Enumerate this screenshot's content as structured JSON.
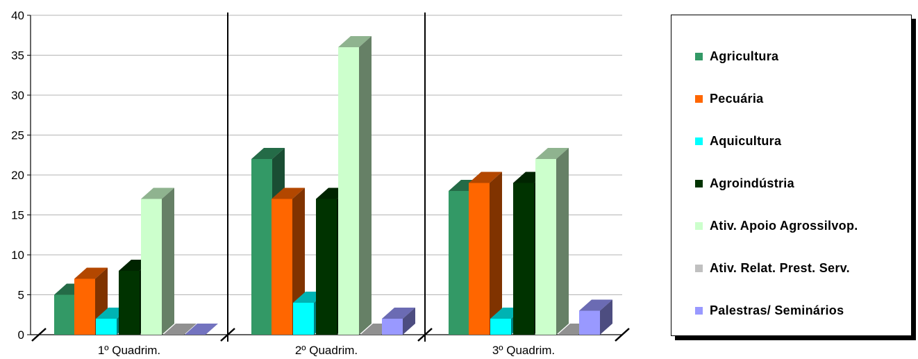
{
  "chart_data": {
    "type": "bar",
    "categories": [
      "1º Quadrim.",
      "2º Quadrim.",
      "3º Quadrim."
    ],
    "ylim": [
      0,
      40
    ],
    "yticks": [
      0,
      5,
      10,
      15,
      20,
      25,
      30,
      35,
      40
    ],
    "grid": true,
    "legend_position": "right",
    "series": [
      {
        "name": "Agricultura",
        "color": "#339966",
        "values": [
          5,
          22,
          18
        ]
      },
      {
        "name": "Pecuária",
        "color": "#ff6600",
        "values": [
          7,
          17,
          19
        ]
      },
      {
        "name": "Aquicultura",
        "color": "#00ffff",
        "values": [
          2,
          4,
          2
        ]
      },
      {
        "name": "Agroindústria",
        "color": "#003300",
        "values": [
          8,
          17,
          19
        ]
      },
      {
        "name": "Ativ. Apoio Agrossilvop.",
        "color": "#ccffcc",
        "values": [
          17,
          36,
          22
        ]
      },
      {
        "name": "Ativ. Relat. Prest. Serv.",
        "color": "#c0c0c0",
        "values": [
          0,
          0,
          0
        ]
      },
      {
        "name": "Palestras/ Seminários",
        "color": "#9999ff",
        "values": [
          0,
          2,
          3
        ]
      }
    ]
  }
}
